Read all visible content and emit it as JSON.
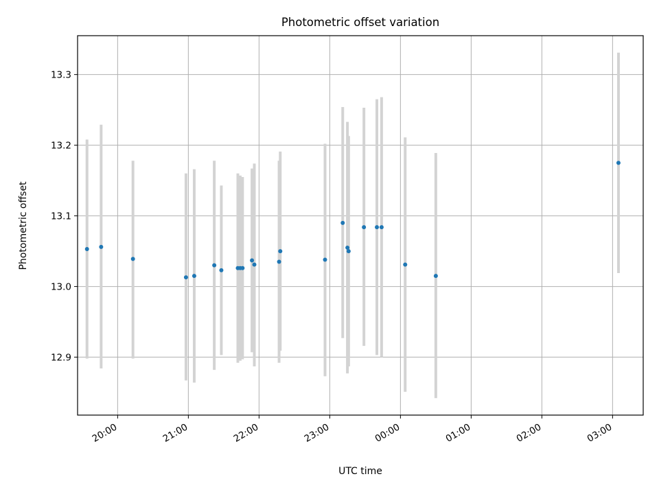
{
  "chart_data": {
    "type": "scatter",
    "title": "Photometric offset variation",
    "xlabel": "UTC time",
    "ylabel": "Photometric offset",
    "x_axis": {
      "ticks": [
        {
          "value": "2000-01-01T20:00",
          "label": "20:00"
        },
        {
          "value": "2000-01-01T21:00",
          "label": "21:00"
        },
        {
          "value": "2000-01-01T22:00",
          "label": "22:00"
        },
        {
          "value": "2000-01-01T23:00",
          "label": "23:00"
        },
        {
          "value": "2000-01-02T00:00",
          "label": "00:00"
        },
        {
          "value": "2000-01-02T01:00",
          "label": "01:00"
        },
        {
          "value": "2000-01-02T02:00",
          "label": "02:00"
        },
        {
          "value": "2000-01-02T03:00",
          "label": "03:00"
        }
      ],
      "range": [
        "2000-01-01T19:26",
        "2000-01-02T03:26"
      ],
      "tick_label_rotation": "30deg"
    },
    "y_axis": {
      "ticks": [
        12.9,
        13.0,
        13.1,
        13.2,
        13.3
      ],
      "range": [
        12.818,
        13.355
      ]
    },
    "grid": true,
    "colors": {
      "points": "#1f77b4",
      "error_bars": "#d3d3d3",
      "grid": "#b0b0b0"
    },
    "points": [
      {
        "x": "2000-01-01T19:34",
        "y": 13.053,
        "ylo": 12.898,
        "yhi": 13.208
      },
      {
        "x": "2000-01-01T19:46",
        "y": 13.056,
        "ylo": 12.884,
        "yhi": 13.229
      },
      {
        "x": "2000-01-01T20:13",
        "y": 13.039,
        "ylo": 12.898,
        "yhi": 13.178
      },
      {
        "x": "2000-01-01T20:58",
        "y": 13.013,
        "ylo": 12.867,
        "yhi": 13.16
      },
      {
        "x": "2000-01-01T21:05",
        "y": 13.015,
        "ylo": 12.864,
        "yhi": 13.166
      },
      {
        "x": "2000-01-01T21:22",
        "y": 13.03,
        "ylo": 12.882,
        "yhi": 13.178
      },
      {
        "x": "2000-01-01T21:28",
        "y": 13.023,
        "ylo": 12.903,
        "yhi": 13.143
      },
      {
        "x": "2000-01-01T21:42",
        "y": 13.026,
        "ylo": 12.892,
        "yhi": 13.16
      },
      {
        "x": "2000-01-01T21:44",
        "y": 13.026,
        "ylo": 12.895,
        "yhi": 13.157
      },
      {
        "x": "2000-01-01T21:46",
        "y": 13.026,
        "ylo": 12.897,
        "yhi": 13.155
      },
      {
        "x": "2000-01-01T21:54",
        "y": 13.037,
        "ylo": 12.907,
        "yhi": 13.167
      },
      {
        "x": "2000-01-01T21:56",
        "y": 13.031,
        "ylo": 12.887,
        "yhi": 13.174
      },
      {
        "x": "2000-01-01T22:17",
        "y": 13.035,
        "ylo": 12.892,
        "yhi": 13.178
      },
      {
        "x": "2000-01-01T22:18",
        "y": 13.05,
        "ylo": 12.909,
        "yhi": 13.191
      },
      {
        "x": "2000-01-01T22:56",
        "y": 13.038,
        "ylo": 12.873,
        "yhi": 13.202
      },
      {
        "x": "2000-01-01T23:11",
        "y": 13.09,
        "ylo": 12.927,
        "yhi": 13.254
      },
      {
        "x": "2000-01-01T23:15",
        "y": 13.055,
        "ylo": 12.877,
        "yhi": 13.233
      },
      {
        "x": "2000-01-01T23:16",
        "y": 13.05,
        "ylo": 12.887,
        "yhi": 13.213
      },
      {
        "x": "2000-01-01T23:29",
        "y": 13.084,
        "ylo": 12.916,
        "yhi": 13.253
      },
      {
        "x": "2000-01-01T23:40",
        "y": 13.084,
        "ylo": 12.903,
        "yhi": 13.265
      },
      {
        "x": "2000-01-01T23:44",
        "y": 13.084,
        "ylo": 12.9,
        "yhi": 13.268
      },
      {
        "x": "2000-01-02T00:04",
        "y": 13.031,
        "ylo": 12.851,
        "yhi": 13.211
      },
      {
        "x": "2000-01-02T00:30",
        "y": 13.015,
        "ylo": 12.842,
        "yhi": 13.189
      },
      {
        "x": "2000-01-02T03:05",
        "y": 13.175,
        "ylo": 13.019,
        "yhi": 13.331
      }
    ]
  }
}
